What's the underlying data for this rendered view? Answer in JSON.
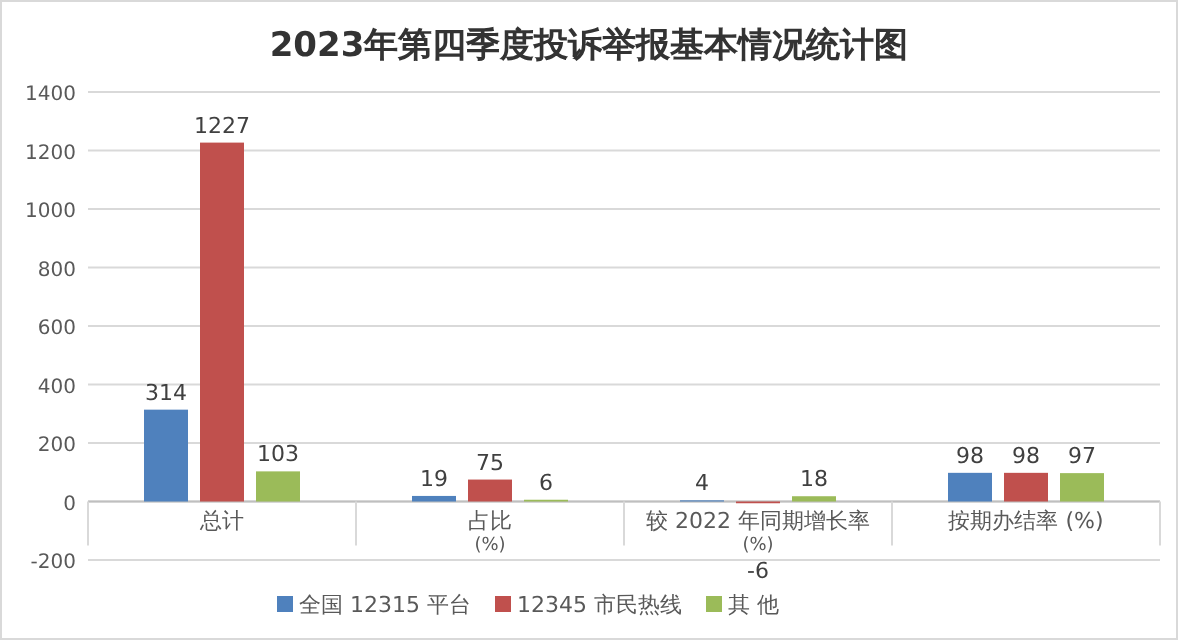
{
  "chart_data": {
    "type": "bar",
    "title": "2023年第四季度投诉举报基本情况统计图",
    "categories": [
      "总计",
      "占比\n(%)",
      "较 2022 年同期增长率\n(%)",
      "按期办结率 (%)"
    ],
    "series": [
      {
        "name": "全国 12315 平台",
        "color": "#4f81bd",
        "values": [
          314,
          19,
          4,
          98
        ]
      },
      {
        "name": "12345 市民热线",
        "color": "#c0504d",
        "values": [
          1227,
          75,
          -6,
          98
        ]
      },
      {
        "name": "其 他",
        "color": "#9bbb59",
        "values": [
          103,
          6,
          18,
          97
        ]
      }
    ],
    "ylim": [
      -200,
      1400
    ],
    "yticks": [
      -200,
      0,
      200,
      400,
      600,
      800,
      1000,
      1200,
      1400
    ],
    "grid": "y",
    "legend": "bottom",
    "data_labels": true
  }
}
